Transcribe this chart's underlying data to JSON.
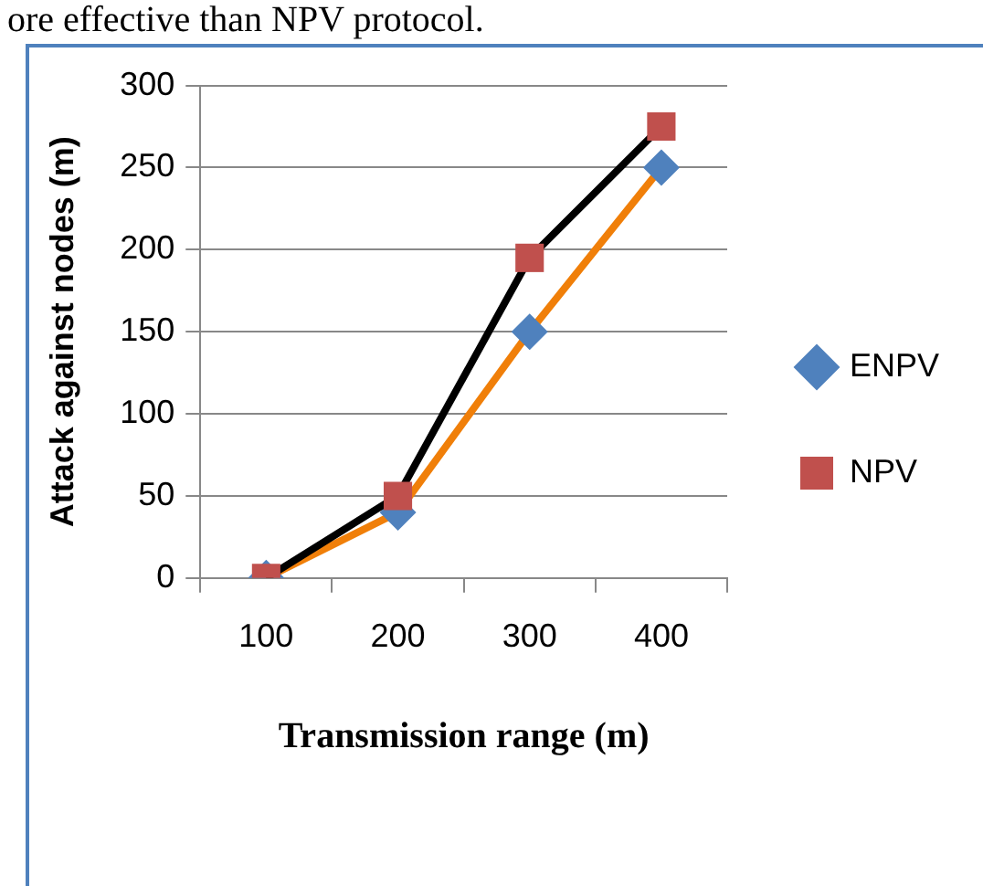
{
  "chart_data": {
    "type": "line",
    "xlabel": "Transmission range (m)",
    "ylabel": "Attack against nodes (m)",
    "annotations": [
      "ore effective than NPV protocol."
    ],
    "categories": [
      "100",
      "200",
      "300",
      "400"
    ],
    "series": [
      {
        "name": "ENPV",
        "color": "#f07f09",
        "colors": [
          "#4f81bd",
          "#4f81bd",
          "#4f81bd",
          "#4f81bd"
        ],
        "marker": "diamond",
        "values": [
          0,
          40,
          150,
          250
        ]
      },
      {
        "name": "NPV",
        "color": "#000000",
        "colors": [
          "#c0504d",
          "#c0504d",
          "#c0504d",
          "#c0504d"
        ],
        "marker": "square",
        "values": [
          0,
          50,
          195,
          275
        ]
      }
    ],
    "ylim": [
      0,
      300
    ],
    "yticks": [
      0,
      50,
      100,
      150,
      200,
      250,
      300
    ],
    "grid": "y",
    "legend": "right",
    "line_style": "solid"
  }
}
